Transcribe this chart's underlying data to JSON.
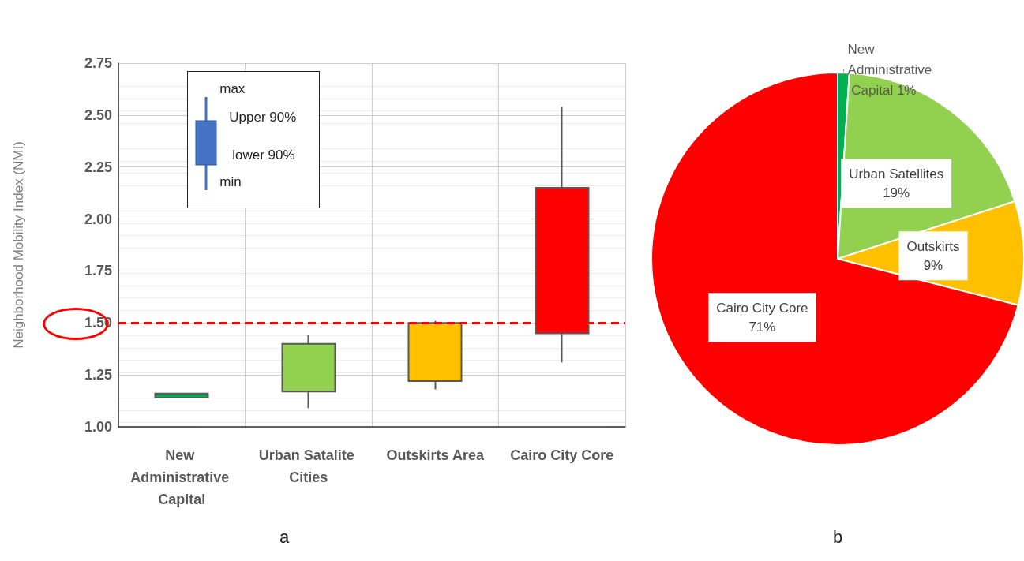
{
  "chart_data": [
    {
      "type": "candlestick",
      "title": "a",
      "ylabel": "Neighborhood Mobility Index (NMI)",
      "categories": [
        "New Administrative Capital",
        "Urban Satalite Cities",
        "Outskirts Area",
        "Cairo City Core"
      ],
      "ohlc": [
        [
          1.14,
          1.16,
          1.14,
          1.16
        ],
        [
          1.17,
          1.44,
          1.09,
          1.4
        ],
        [
          1.22,
          1.51,
          1.18,
          1.5
        ],
        [
          1.45,
          2.54,
          1.31,
          2.15
        ]
      ],
      "colors": [
        "#00b050",
        "#92d050",
        "#ffc000",
        "#ff0000"
      ],
      "ylim": [
        1,
        2.75
      ],
      "yticks": [
        {
          "value": 1,
          "label": "1.00"
        },
        {
          "value": 1.25,
          "label": "1.25"
        },
        {
          "value": 1.5,
          "label": "1.50"
        },
        {
          "value": 1.75,
          "label": "1.75"
        },
        {
          "value": 2,
          "label": "2.00"
        },
        {
          "value": 2.25,
          "label": "2.25"
        },
        {
          "value": 2.5,
          "label": "2.50"
        },
        {
          "value": 2.75,
          "label": "2.75"
        }
      ],
      "grid": true,
      "ref_lines": [
        {
          "axis": "y",
          "value": 1.5,
          "color": "#ff0000",
          "line_style": "dashed"
        }
      ],
      "annotations": [
        "max",
        "Upper 90%",
        "lower 90%",
        "min"
      ]
    },
    {
      "type": "pie",
      "title": "b",
      "categories": [
        "New Administrative Capital",
        "Urban Satellites",
        "Outskirts",
        "Cairo City Core"
      ],
      "values": [
        1,
        19,
        9,
        71
      ],
      "colors": [
        "#00b050",
        "#92d050",
        "#ffc000",
        "#ff0000"
      ],
      "value_labels": [
        "1%",
        "19%",
        "9%",
        "71%"
      ]
    }
  ]
}
